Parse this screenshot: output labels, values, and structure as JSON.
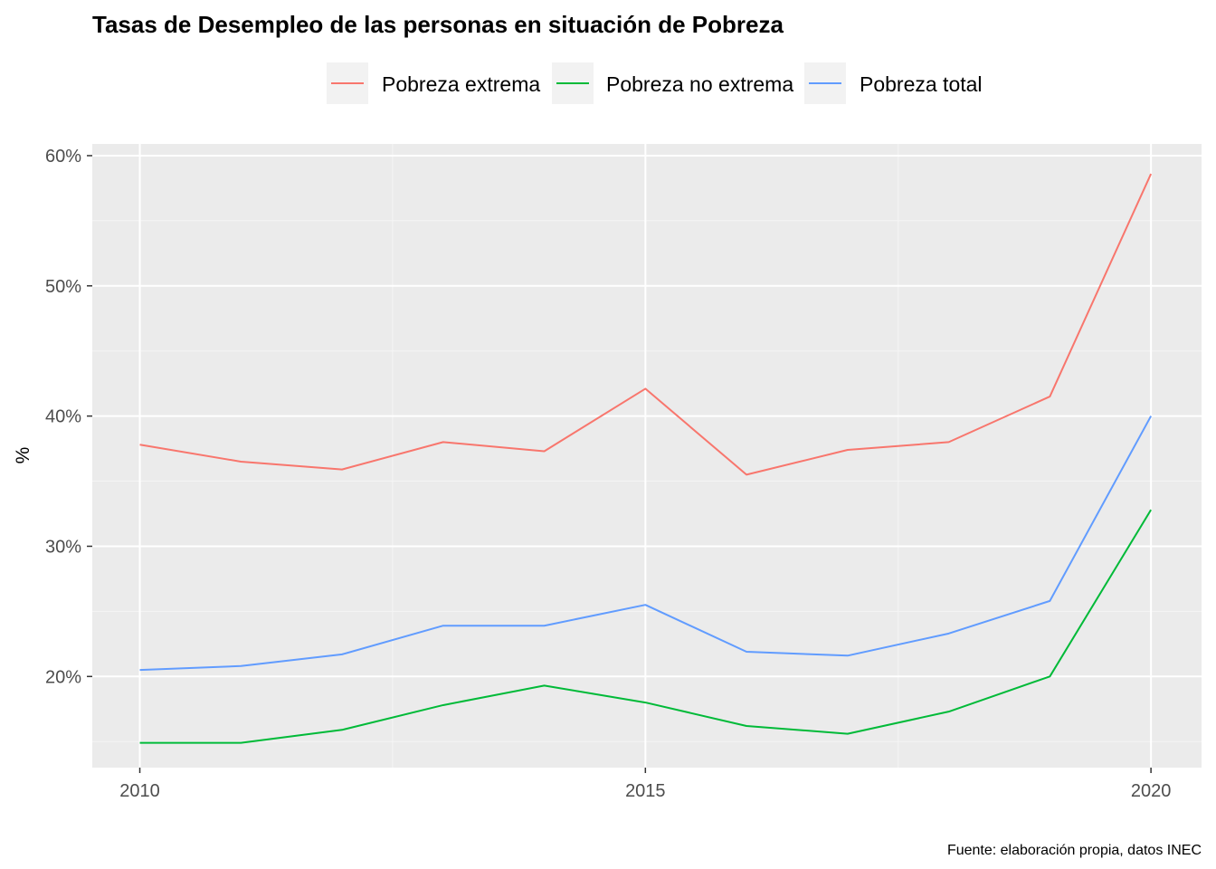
{
  "chart_data": {
    "type": "line",
    "title": "Tasas de Desempleo de las personas en situación de Pobreza",
    "xlabel": "",
    "ylabel": "%",
    "caption": "Fuente: elaboración propia, datos INEC",
    "x": [
      2010,
      2011,
      2012,
      2013,
      2014,
      2015,
      2016,
      2017,
      2018,
      2019,
      2020
    ],
    "xlim": [
      2009.53,
      2020.5
    ],
    "ylim": [
      13.0,
      60.9
    ],
    "x_ticks": [
      2010,
      2015,
      2020
    ],
    "x_tick_labels": [
      "2010",
      "2015",
      "2020"
    ],
    "x_minor_ticks": [
      2012.5,
      2017.5
    ],
    "y_ticks": [
      20,
      30,
      40,
      50,
      60
    ],
    "y_tick_labels": [
      "20%",
      "30%",
      "40%",
      "50%",
      "60%"
    ],
    "y_minor_ticks": [
      15,
      25,
      35,
      45,
      55
    ],
    "grid": true,
    "legend_position": "top",
    "series": [
      {
        "name": "Pobreza extrema",
        "color": "#F8766D",
        "values": [
          37.8,
          36.5,
          35.9,
          38.0,
          37.3,
          42.1,
          35.5,
          37.4,
          38.0,
          41.5,
          58.6
        ]
      },
      {
        "name": "Pobreza no extrema",
        "color": "#00BA38",
        "values": [
          14.9,
          14.9,
          15.9,
          17.8,
          19.3,
          18.0,
          16.2,
          15.6,
          17.3,
          20.0,
          32.8
        ]
      },
      {
        "name": "Pobreza total",
        "color": "#619CFF",
        "values": [
          20.5,
          20.8,
          21.7,
          23.9,
          23.9,
          25.5,
          21.9,
          21.6,
          23.3,
          25.8,
          40.0
        ]
      }
    ]
  },
  "colors": {
    "panel_background": "#EBEBEB",
    "grid_major": "#FFFFFF",
    "grid_minor": "#F5F5F5",
    "legend_key_background": "#F2F2F2",
    "tick_mark": "#333333"
  }
}
